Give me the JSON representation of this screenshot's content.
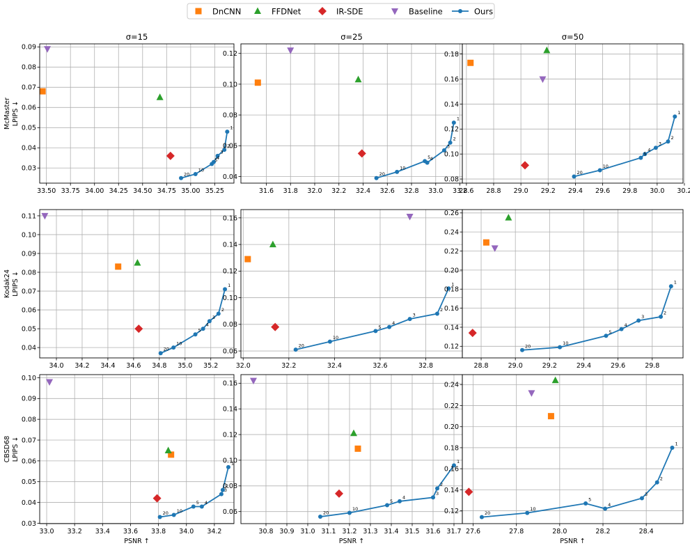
{
  "legend": {
    "items": [
      {
        "label": "DnCNN",
        "marker": "square",
        "color": "#ff7f0e"
      },
      {
        "label": "FFDNet",
        "marker": "triangle-up",
        "color": "#2ca02c"
      },
      {
        "label": "IR-SDE",
        "marker": "diamond",
        "color": "#d62728"
      },
      {
        "label": "Baseline",
        "marker": "triangle-down",
        "color": "#9467bd"
      },
      {
        "label": "Ours",
        "marker": "circle-line",
        "color": "#1f77b4"
      }
    ]
  },
  "col_titles": [
    "σ=15",
    "σ=25",
    "σ=50"
  ],
  "row_ylabels": [
    [
      "McMaster",
      "LPIPS ↓"
    ],
    [
      "Kodak24",
      "LPIPS ↓"
    ],
    [
      "CBSD68",
      "LPIPS ↓"
    ]
  ],
  "xlabel": "PSNR ↑",
  "chart_data": [
    {
      "type": "scatter",
      "dataset": "McMaster",
      "sigma": 15,
      "xlim": [
        33.43,
        35.45
      ],
      "ylim": [
        0.0225,
        0.0915
      ],
      "xticks": [
        33.5,
        33.75,
        34.0,
        34.25,
        34.5,
        34.75,
        35.0,
        35.25
      ],
      "xdec": 2,
      "yticks": [
        0.03,
        0.04,
        0.05,
        0.06,
        0.07,
        0.08,
        0.09
      ],
      "ydec": 2,
      "points": {
        "DnCNN": [
          33.46,
          0.068
        ],
        "FFDNet": [
          34.68,
          0.065
        ],
        "IR-SDE": [
          34.79,
          0.036
        ],
        "Baseline": [
          33.51,
          0.089
        ]
      },
      "ours": {
        "x": [
          35.38,
          35.35,
          35.28,
          35.24,
          35.22,
          35.05,
          34.9
        ],
        "y": [
          0.048,
          0.039,
          0.036,
          0.033,
          0.032,
          0.027,
          0.025
        ],
        "labels": [
          "1",
          "2",
          "3",
          "4",
          "5",
          "10",
          "20"
        ]
      }
    },
    {
      "type": "scatter",
      "dataset": "McMaster",
      "sigma": 25,
      "xlim": [
        31.39,
        33.22
      ],
      "ylim": [
        0.0357,
        0.1262
      ],
      "xticks": [
        31.6,
        31.8,
        32.0,
        32.2,
        32.4,
        32.6,
        32.8,
        33.0,
        33.2
      ],
      "xdec": 1,
      "yticks": [
        0.04,
        0.06,
        0.08,
        0.1,
        0.12
      ],
      "ydec": 2,
      "points": {
        "DnCNN": [
          31.53,
          0.101
        ],
        "FFDNet": [
          32.36,
          0.103
        ],
        "IR-SDE": [
          32.39,
          0.055
        ],
        "Baseline": [
          31.8,
          0.122
        ]
      },
      "ours": {
        "x": [
          33.15,
          33.12,
          33.07,
          32.93,
          32.91,
          32.68,
          32.51
        ],
        "y": [
          0.075,
          0.062,
          0.057,
          0.049,
          0.05,
          0.043,
          0.039
        ],
        "labels": [
          "1",
          "2",
          "3",
          "4",
          "5",
          "10",
          "20"
        ]
      }
    },
    {
      "type": "scatter",
      "dataset": "McMaster",
      "sigma": 50,
      "xlim": [
        28.57,
        30.19
      ],
      "ylim": [
        0.0767,
        0.1882
      ],
      "xticks": [
        28.6,
        28.8,
        29.0,
        29.2,
        29.4,
        29.6,
        29.8,
        30.0,
        30.2
      ],
      "xdec": 1,
      "yticks": [
        0.08,
        0.1,
        0.12,
        0.14,
        0.16,
        0.18
      ],
      "ydec": 2,
      "points": {
        "DnCNN": [
          28.63,
          0.173
        ],
        "FFDNet": [
          29.19,
          0.183
        ],
        "IR-SDE": [
          29.03,
          0.091
        ],
        "Baseline": [
          29.16,
          0.16
        ]
      },
      "ours": {
        "x": [
          30.13,
          30.08,
          29.99,
          29.91,
          29.88,
          29.58,
          29.39
        ],
        "y": [
          0.13,
          0.11,
          0.105,
          0.1,
          0.097,
          0.087,
          0.082
        ],
        "labels": [
          "1",
          "2",
          "3",
          "4",
          "5",
          "10",
          "20"
        ]
      }
    },
    {
      "type": "scatter",
      "dataset": "Kodak24",
      "sigma": 15,
      "xlim": [
        33.87,
        35.38
      ],
      "ylim": [
        0.0345,
        0.1133
      ],
      "xticks": [
        34.0,
        34.2,
        34.4,
        34.6,
        34.8,
        35.0,
        35.2
      ],
      "xdec": 1,
      "yticks": [
        0.04,
        0.05,
        0.06,
        0.07,
        0.08,
        0.09,
        0.1,
        0.11
      ],
      "ydec": 2,
      "points": {
        "DnCNN": [
          34.48,
          0.083
        ],
        "FFDNet": [
          34.63,
          0.085
        ],
        "IR-SDE": [
          34.64,
          0.05
        ],
        "Baseline": [
          33.91,
          0.11
        ]
      },
      "ours": {
        "x": [
          35.31,
          35.26,
          35.19,
          35.14,
          35.08,
          34.91,
          34.81
        ],
        "y": [
          0.071,
          0.058,
          0.054,
          0.05,
          0.047,
          0.04,
          0.037
        ],
        "labels": [
          "1",
          "2",
          "3",
          "4",
          "5",
          "10",
          "20"
        ]
      }
    },
    {
      "type": "scatter",
      "dataset": "Kodak24",
      "sigma": 25,
      "xlim": [
        31.99,
        32.96
      ],
      "ylim": [
        0.0548,
        0.1662
      ],
      "xticks": [
        32.0,
        32.2,
        32.4,
        32.6,
        32.8
      ],
      "xdec": 1,
      "yticks": [
        0.06,
        0.08,
        0.1,
        0.12,
        0.14,
        0.16
      ],
      "ydec": 2,
      "points": {
        "DnCNN": [
          32.02,
          0.129
        ],
        "FFDNet": [
          32.13,
          0.14
        ],
        "IR-SDE": [
          32.14,
          0.078
        ],
        "Baseline": [
          32.73,
          0.161
        ]
      },
      "ours": {
        "x": [
          32.9,
          32.85,
          32.73,
          32.64,
          32.58,
          32.38,
          32.23
        ],
        "y": [
          0.107,
          0.088,
          0.084,
          0.078,
          0.075,
          0.067,
          0.061
        ],
        "labels": [
          "1",
          "2",
          "3",
          "4",
          "5",
          "10",
          "20"
        ]
      }
    },
    {
      "type": "scatter",
      "dataset": "Kodak24",
      "sigma": 50,
      "xlim": [
        28.69,
        29.98
      ],
      "ylim": [
        0.1078,
        0.2635
      ],
      "xticks": [
        28.8,
        29.0,
        29.2,
        29.4,
        29.6,
        29.8
      ],
      "xdec": 1,
      "yticks": [
        0.12,
        0.14,
        0.16,
        0.18,
        0.2,
        0.22,
        0.24,
        0.26
      ],
      "ydec": 2,
      "points": {
        "DnCNN": [
          28.83,
          0.229
        ],
        "FFDNet": [
          28.96,
          0.255
        ],
        "IR-SDE": [
          28.75,
          0.134
        ],
        "Baseline": [
          28.88,
          0.223
        ]
      },
      "ours": {
        "x": [
          29.91,
          29.85,
          29.72,
          29.62,
          29.53,
          29.26,
          29.04
        ],
        "y": [
          0.183,
          0.151,
          0.147,
          0.138,
          0.131,
          0.119,
          0.116
        ],
        "labels": [
          "1",
          "2",
          "3",
          "4",
          "5",
          "10",
          "20"
        ]
      }
    },
    {
      "type": "scatter",
      "dataset": "CBSD68",
      "sigma": 15,
      "xlim": [
        32.95,
        34.34
      ],
      "ylim": [
        0.0298,
        0.1015
      ],
      "xticks": [
        33.0,
        33.2,
        33.4,
        33.6,
        33.8,
        34.0,
        34.2
      ],
      "xdec": 1,
      "yticks": [
        0.03,
        0.04,
        0.05,
        0.06,
        0.07,
        0.08,
        0.09,
        0.1
      ],
      "ydec": 2,
      "points": {
        "DnCNN": [
          33.89,
          0.063
        ],
        "FFDNet": [
          33.87,
          0.065
        ],
        "IR-SDE": [
          33.79,
          0.042
        ],
        "Baseline": [
          33.02,
          0.098
        ]
      },
      "ours": {
        "x": [
          34.3,
          34.26,
          34.25,
          34.11,
          34.05,
          33.91,
          33.81
        ],
        "y": [
          0.057,
          0.046,
          0.044,
          0.038,
          0.038,
          0.034,
          0.033
        ],
        "labels": [
          "1",
          "2",
          "3",
          "4",
          "5",
          "10",
          "20"
        ]
      }
    },
    {
      "type": "scatter",
      "dataset": "CBSD68",
      "sigma": 25,
      "xlim": [
        30.68,
        31.74
      ],
      "ylim": [
        0.0506,
        0.1667
      ],
      "xticks": [
        30.8,
        30.9,
        31.0,
        31.1,
        31.2,
        31.3,
        31.4,
        31.5,
        31.6,
        31.7
      ],
      "xdec": 1,
      "yticks": [
        0.06,
        0.08,
        0.1,
        0.12,
        0.14,
        0.16
      ],
      "ydec": 2,
      "points": {
        "DnCNN": [
          31.24,
          0.109
        ],
        "FFDNet": [
          31.22,
          0.121
        ],
        "IR-SDE": [
          31.15,
          0.074
        ],
        "Baseline": [
          30.74,
          0.162
        ]
      },
      "ours": {
        "x": [
          31.7,
          31.62,
          31.6,
          31.44,
          31.38,
          31.2,
          31.06
        ],
        "y": [
          0.096,
          0.078,
          0.071,
          0.068,
          0.065,
          0.059,
          0.056
        ],
        "labels": [
          "1",
          "2",
          "3",
          "4",
          "5",
          "10",
          "20"
        ]
      }
    },
    {
      "type": "scatter",
      "dataset": "CBSD68",
      "sigma": 50,
      "xlim": [
        27.55,
        28.57
      ],
      "ylim": [
        0.1078,
        0.2495
      ],
      "xticks": [
        27.6,
        27.8,
        28.0,
        28.2,
        28.4
      ],
      "xdec": 1,
      "yticks": [
        0.12,
        0.14,
        0.16,
        0.18,
        0.2,
        0.22,
        0.24
      ],
      "ydec": 2,
      "points": {
        "DnCNN": [
          27.96,
          0.21
        ],
        "FFDNet": [
          27.98,
          0.244
        ],
        "IR-SDE": [
          27.58,
          0.138
        ],
        "Baseline": [
          27.87,
          0.232
        ]
      },
      "ours": {
        "x": [
          28.52,
          28.45,
          28.38,
          28.21,
          28.12,
          27.85,
          27.64
        ],
        "y": [
          0.18,
          0.147,
          0.132,
          0.122,
          0.127,
          0.118,
          0.114
        ],
        "labels": [
          "1",
          "2",
          "3",
          "4",
          "5",
          "10",
          "20"
        ]
      }
    }
  ]
}
